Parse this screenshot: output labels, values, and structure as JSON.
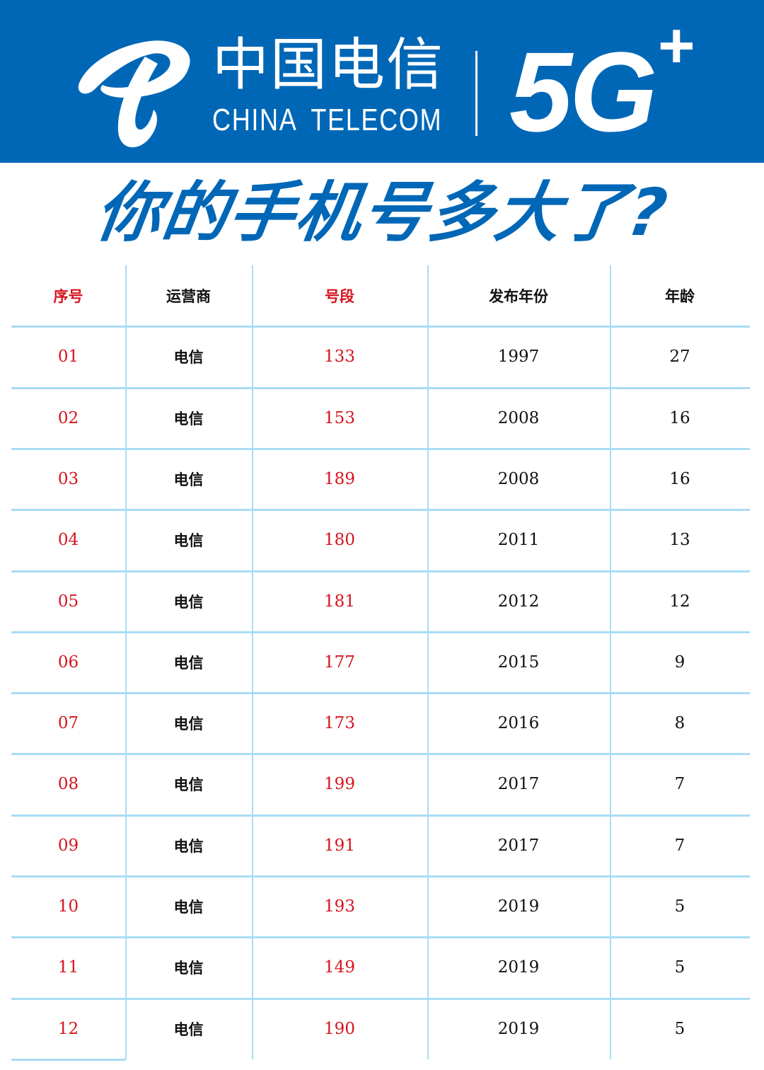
{
  "header": {
    "brand_cn": "中国电信",
    "brand_en": "CHINA TELECOM",
    "network": "5G",
    "network_plus": "+",
    "logo": "china-telecom-logo",
    "background_color": "#0067b7"
  },
  "headline": "你的手机号多大了?",
  "table": {
    "columns": [
      "序号",
      "运营商",
      "号段",
      "发布年份",
      "年龄"
    ],
    "rows": [
      [
        "01",
        "电信",
        "133",
        "1997",
        "27"
      ],
      [
        "02",
        "电信",
        "153",
        "2008",
        "16"
      ],
      [
        "03",
        "电信",
        "189",
        "2008",
        "16"
      ],
      [
        "04",
        "电信",
        "180",
        "2011",
        "13"
      ],
      [
        "05",
        "电信",
        "181",
        "2012",
        "12"
      ],
      [
        "06",
        "电信",
        "177",
        "2015",
        "9"
      ],
      [
        "07",
        "电信",
        "173",
        "2016",
        "8"
      ],
      [
        "08",
        "电信",
        "199",
        "2017",
        "7"
      ],
      [
        "09",
        "电信",
        "191",
        "2017",
        "7"
      ],
      [
        "10",
        "电信",
        "193",
        "2019",
        "5"
      ],
      [
        "11",
        "电信",
        "149",
        "2019",
        "5"
      ],
      [
        "12",
        "电信",
        "190",
        "2019",
        "5"
      ]
    ],
    "accent_color": "#d6141e",
    "grid_color": "#a9dcf5"
  }
}
